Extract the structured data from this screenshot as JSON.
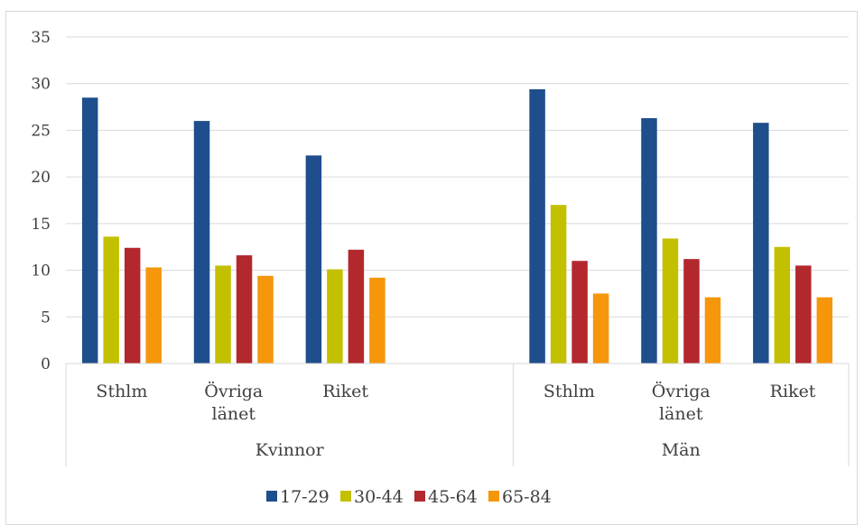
{
  "chart_data": {
    "type": "bar",
    "title": "",
    "xlabel": "",
    "ylabel": "",
    "ylim": [
      0,
      35
    ],
    "yticks": [
      0,
      5,
      10,
      15,
      20,
      25,
      30,
      35
    ],
    "grid": true,
    "legend_position": "bottom",
    "groups": [
      {
        "label": "Kvinnor",
        "categories": [
          "Sthlm",
          "Övriga länet",
          "Riket",
          ""
        ]
      },
      {
        "label": "Män",
        "categories": [
          "Sthlm",
          "Övriga länet",
          "Riket"
        ]
      }
    ],
    "categories": [
      "Sthlm",
      "Övriga länet",
      "Riket",
      "",
      "Sthlm",
      "Övriga länet",
      "Riket"
    ],
    "series": [
      {
        "name": "17-29",
        "color": "#1f4e8c",
        "values": [
          28.5,
          26.0,
          22.3,
          null,
          29.4,
          26.3,
          25.8
        ]
      },
      {
        "name": "30-44",
        "color": "#c3c000",
        "values": [
          13.6,
          10.5,
          10.1,
          null,
          17.0,
          13.4,
          12.5
        ]
      },
      {
        "name": "45-64",
        "color": "#b3282d",
        "values": [
          12.4,
          11.6,
          12.2,
          null,
          11.0,
          11.2,
          10.5
        ]
      },
      {
        "name": "65-84",
        "color": "#f5960b",
        "values": [
          10.3,
          9.4,
          9.2,
          null,
          7.5,
          7.1,
          7.1
        ]
      }
    ]
  }
}
